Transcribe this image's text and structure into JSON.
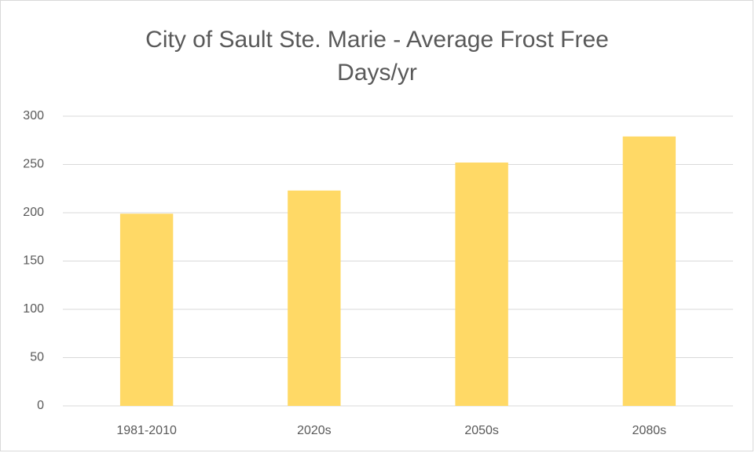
{
  "chart_data": {
    "type": "bar",
    "title": "City of Sault Ste. Marie - Average Frost Free Days/yr",
    "categories": [
      "1981-2010",
      "2020s",
      "2050s",
      "2080s"
    ],
    "values": [
      199,
      223,
      252,
      279
    ],
    "color": "#ffd966",
    "ylim": [
      0,
      300
    ],
    "yticks": [
      0,
      50,
      100,
      150,
      200,
      250,
      300
    ],
    "grid": true
  }
}
